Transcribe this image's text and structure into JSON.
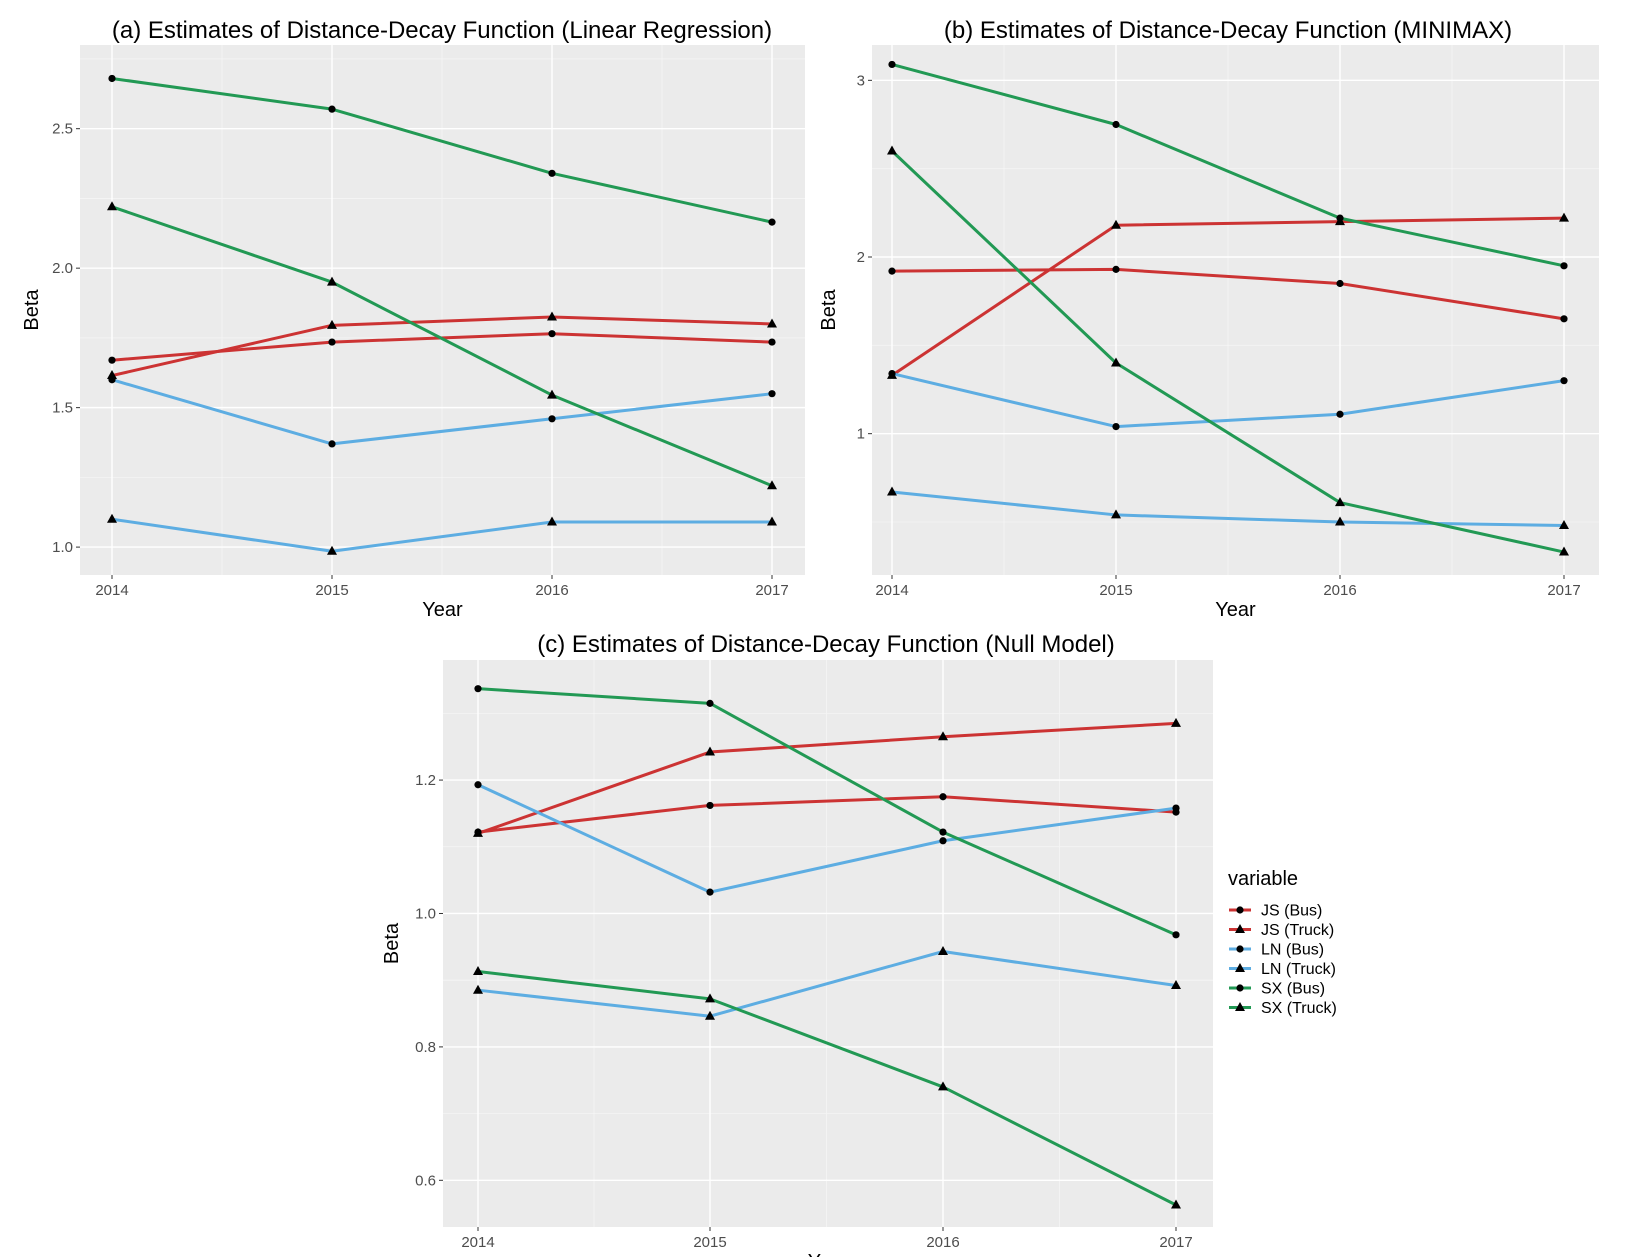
{
  "chart_data": [
    {
      "type": "line",
      "title": "(a) Estimates of Distance-Decay Function (Linear Regression)",
      "xlabel": "Year",
      "ylabel": "Beta",
      "categories": [
        "2014",
        "2015",
        "2016",
        "2017"
      ],
      "ylim": [
        0.9,
        2.8
      ],
      "yticks": [
        1.0,
        1.5,
        2.0,
        2.5
      ],
      "ytick_labels": [
        "1.0",
        "1.5",
        "2.0",
        "2.5"
      ],
      "series": [
        {
          "name": "JS (Bus)",
          "values": [
            1.67,
            1.735,
            1.765,
            1.735
          ]
        },
        {
          "name": "JS (Truck)",
          "values": [
            1.615,
            1.795,
            1.825,
            1.8
          ]
        },
        {
          "name": "LN (Bus)",
          "values": [
            1.6,
            1.37,
            1.46,
            1.55
          ]
        },
        {
          "name": "LN (Truck)",
          "values": [
            1.1,
            0.985,
            1.09,
            1.09
          ]
        },
        {
          "name": "SX (Bus)",
          "values": [
            2.68,
            2.57,
            2.34,
            2.165
          ]
        },
        {
          "name": "SX (Truck)",
          "values": [
            2.22,
            1.95,
            1.545,
            1.22
          ]
        }
      ]
    },
    {
      "type": "line",
      "title": "(b) Estimates of Distance-Decay Function (MINIMAX)",
      "xlabel": "Year",
      "ylabel": "Beta",
      "categories": [
        "2014",
        "2015",
        "2016",
        "2017"
      ],
      "ylim": [
        0.2,
        3.2
      ],
      "yticks": [
        1,
        2,
        3
      ],
      "ytick_labels": [
        "1",
        "2",
        "3"
      ],
      "series": [
        {
          "name": "JS (Bus)",
          "values": [
            1.92,
            1.93,
            1.85,
            1.65
          ]
        },
        {
          "name": "JS (Truck)",
          "values": [
            1.33,
            2.18,
            2.2,
            2.22
          ]
        },
        {
          "name": "LN (Bus)",
          "values": [
            1.34,
            1.04,
            1.11,
            1.3
          ]
        },
        {
          "name": "LN (Truck)",
          "values": [
            0.67,
            0.54,
            0.5,
            0.48
          ]
        },
        {
          "name": "SX (Bus)",
          "values": [
            3.09,
            2.75,
            2.22,
            1.95
          ]
        },
        {
          "name": "SX (Truck)",
          "values": [
            2.6,
            1.4,
            0.61,
            0.33
          ]
        }
      ]
    },
    {
      "type": "line",
      "title": "(c) Estimates of Distance-Decay Function (Null Model)",
      "xlabel": "Year",
      "ylabel": "Beta",
      "categories": [
        "2014",
        "2015",
        "2016",
        "2017"
      ],
      "ylim": [
        0.53,
        1.38
      ],
      "yticks": [
        0.6,
        0.8,
        1.0,
        1.2
      ],
      "ytick_labels": [
        "0.6",
        "0.8",
        "1.0",
        "1.2"
      ],
      "series": [
        {
          "name": "JS (Bus)",
          "values": [
            1.122,
            1.162,
            1.175,
            1.152
          ]
        },
        {
          "name": "JS (Truck)",
          "values": [
            1.12,
            1.242,
            1.265,
            1.285
          ]
        },
        {
          "name": "LN (Bus)",
          "values": [
            1.193,
            1.032,
            1.109,
            1.158
          ]
        },
        {
          "name": "LN (Truck)",
          "values": [
            0.885,
            0.846,
            0.943,
            0.892
          ]
        },
        {
          "name": "SX (Bus)",
          "values": [
            1.337,
            1.315,
            1.122,
            0.968
          ]
        },
        {
          "name": "SX (Truck)",
          "values": [
            0.913,
            0.872,
            0.74,
            0.563
          ]
        }
      ]
    }
  ],
  "legend": {
    "title": "variable",
    "position": "right",
    "items": [
      {
        "name": "JS (Bus)",
        "color": "#cc3333",
        "marker": "circle"
      },
      {
        "name": "JS (Truck)",
        "color": "#cc3333",
        "marker": "triangle"
      },
      {
        "name": "LN (Bus)",
        "color": "#5dade2",
        "marker": "circle"
      },
      {
        "name": "LN (Truck)",
        "color": "#5dade2",
        "marker": "triangle"
      },
      {
        "name": "SX (Bus)",
        "color": "#229954",
        "marker": "circle"
      },
      {
        "name": "SX (Truck)",
        "color": "#229954",
        "marker": "triangle"
      }
    ]
  },
  "colors": {
    "panel_background": "#ebebeb",
    "grid_major": "#ffffff",
    "marker": "#000000"
  }
}
